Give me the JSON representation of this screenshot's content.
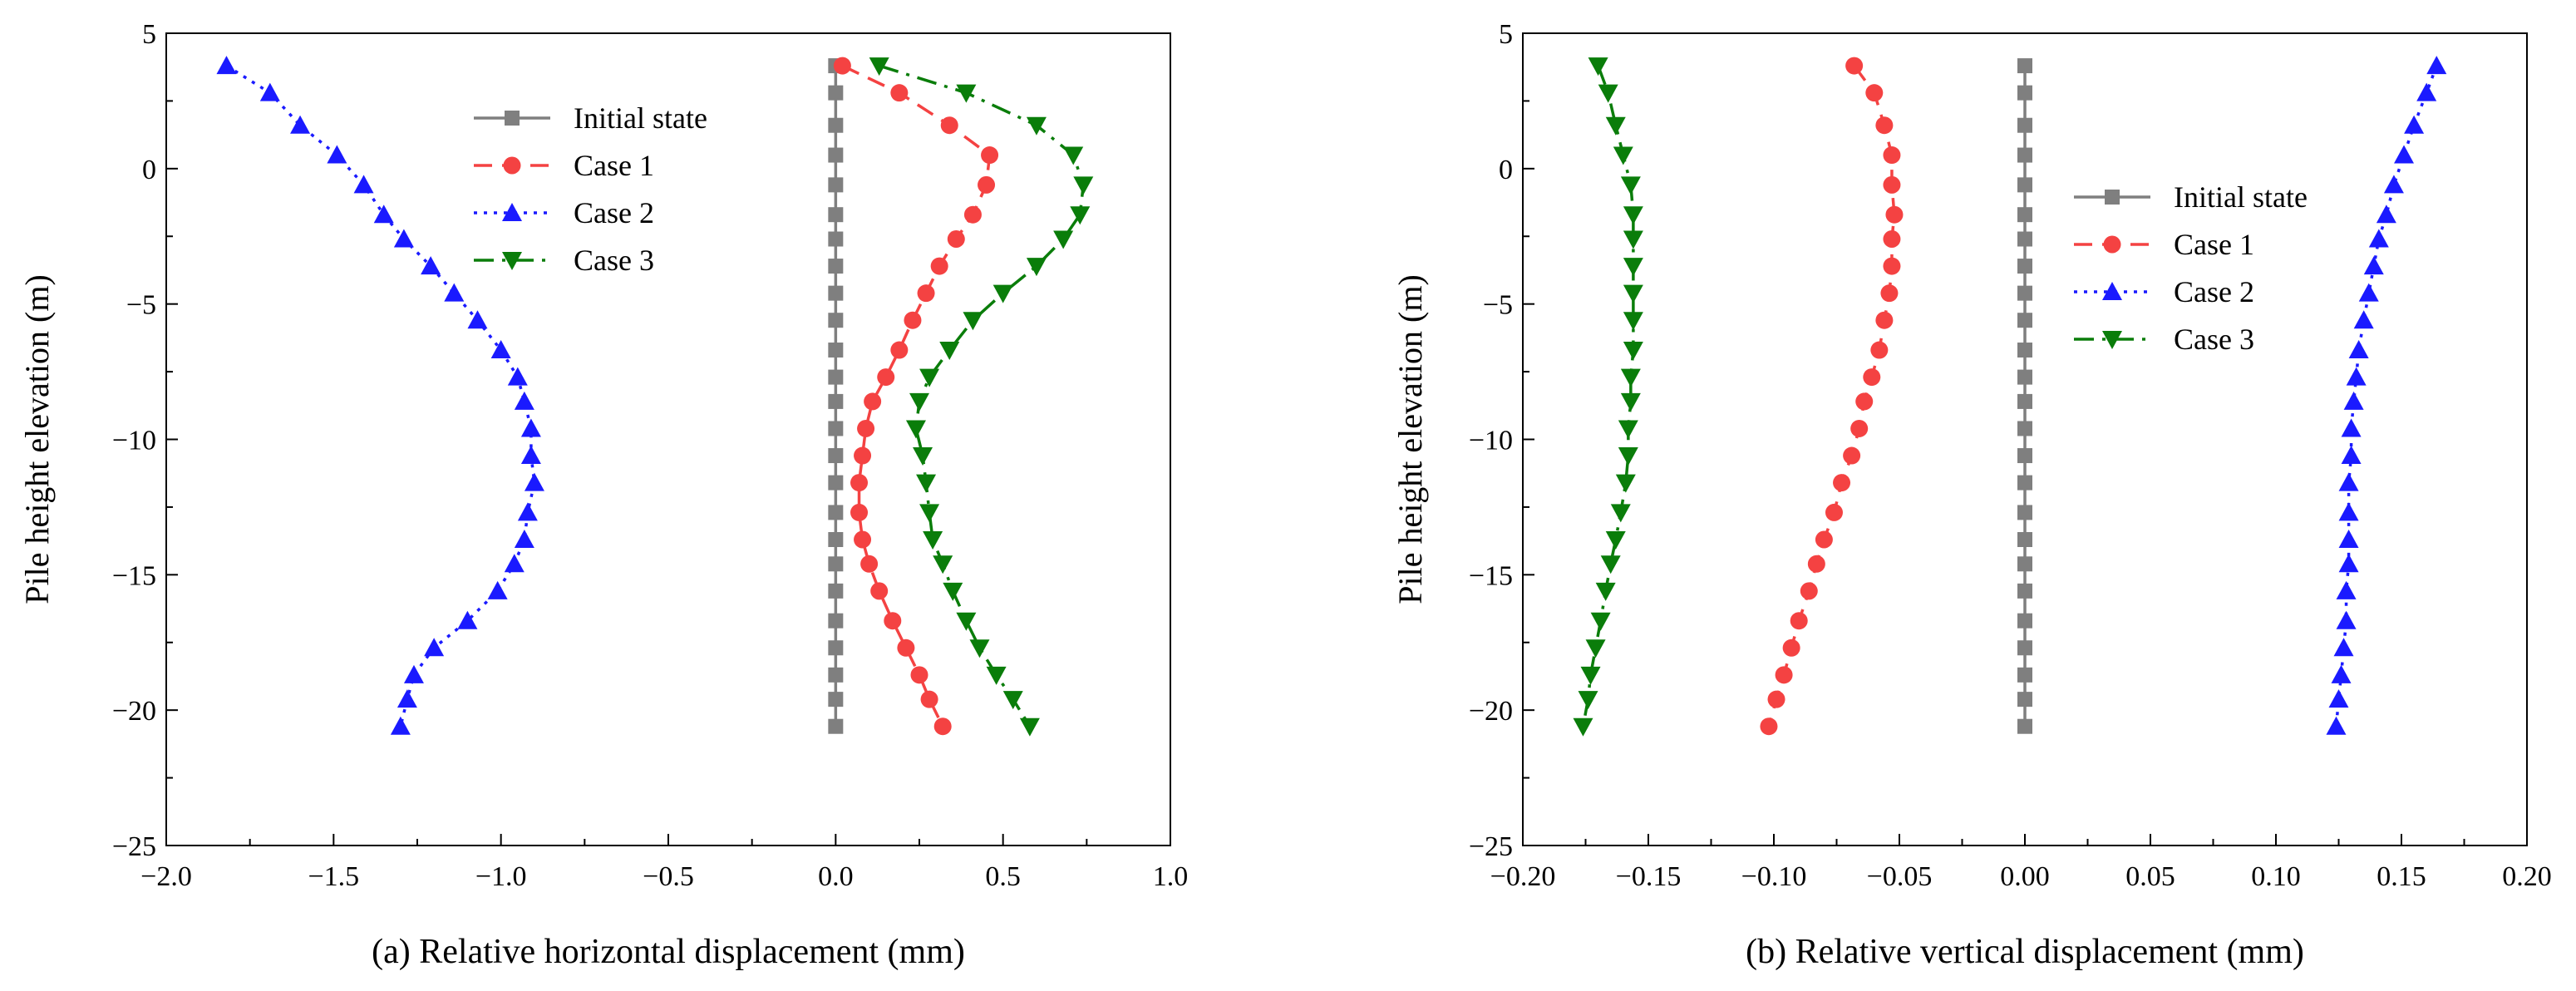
{
  "chart_data": [
    {
      "type": "line",
      "id": "a",
      "caption": "(a) Relative horizontal displacement (mm)",
      "xlabel": "",
      "ylabel": "Pile height elevation (m)",
      "xlim": [
        -2.0,
        1.0
      ],
      "ylim": [
        -25,
        5
      ],
      "xticks": [
        -2.0,
        -1.5,
        -1.0,
        -0.5,
        0.0,
        0.5,
        1.0
      ],
      "xtick_labels": [
        "−2.0",
        "−1.5",
        "−1.0",
        "−0.5",
        "0.0",
        "0.5",
        "1.0"
      ],
      "yticks": [
        5,
        0,
        -5,
        -10,
        -15,
        -20,
        -25
      ],
      "ytick_labels": [
        "5",
        "0",
        "−5",
        "−10",
        "−15",
        "−20",
        "−25"
      ],
      "legend_position": "top-left",
      "y": [
        3.8,
        2.8,
        1.6,
        0.5,
        -0.6,
        -1.7,
        -2.6,
        -3.6,
        -4.6,
        -5.6,
        -6.7,
        -7.7,
        -8.6,
        -9.6,
        -10.6,
        -11.6,
        -12.7,
        -13.7,
        -14.6,
        -15.6,
        -16.7,
        -17.7,
        -18.7,
        -19.6,
        -20.6
      ],
      "series": [
        {
          "name": "Initial state",
          "values": [
            0,
            0,
            0,
            0,
            0,
            0,
            0,
            0,
            0,
            0,
            0,
            0,
            0,
            0,
            0,
            0,
            0,
            0,
            0,
            0,
            0,
            0,
            0,
            0,
            0
          ]
        },
        {
          "name": "Case 1",
          "values": [
            0.02,
            0.19,
            0.34,
            0.46,
            0.45,
            0.41,
            0.36,
            0.31,
            0.27,
            0.23,
            0.19,
            0.15,
            0.11,
            0.09,
            0.08,
            0.07,
            0.07,
            0.08,
            0.1,
            0.13,
            0.17,
            0.21,
            0.25,
            0.28,
            0.32
          ]
        },
        {
          "name": "Case 2",
          "values": [
            -1.82,
            -1.69,
            -1.6,
            -1.49,
            -1.41,
            -1.35,
            -1.29,
            -1.21,
            -1.14,
            -1.07,
            -1.0,
            -0.95,
            -0.93,
            -0.91,
            -0.91,
            -0.9,
            -0.92,
            -0.93,
            -0.96,
            -1.01,
            -1.1,
            -1.2,
            -1.26,
            -1.28,
            -1.3
          ]
        },
        {
          "name": "Case 3",
          "values": [
            0.13,
            0.39,
            0.6,
            0.71,
            0.74,
            0.73,
            0.68,
            0.6,
            0.5,
            0.41,
            0.34,
            0.28,
            0.25,
            0.24,
            0.26,
            0.27,
            0.28,
            0.29,
            0.32,
            0.35,
            0.39,
            0.43,
            0.48,
            0.53,
            0.58
          ]
        }
      ]
    },
    {
      "type": "line",
      "id": "b",
      "caption": "(b) Relative vertical displacement (mm)",
      "xlabel": "",
      "ylabel": "Pile height elevation (m)",
      "xlim": [
        -0.2,
        0.2
      ],
      "ylim": [
        -25,
        5
      ],
      "xticks": [
        -0.2,
        -0.15,
        -0.1,
        -0.05,
        0.0,
        0.05,
        0.1,
        0.15,
        0.2
      ],
      "xtick_labels": [
        "−0.20",
        "−0.15",
        "−0.10",
        "−0.05",
        "0.00",
        "0.05",
        "0.10",
        "0.15",
        "0.20"
      ],
      "yticks": [
        5,
        0,
        -5,
        -10,
        -15,
        -20,
        -25
      ],
      "ytick_labels": [
        "5",
        "0",
        "−5",
        "−10",
        "−15",
        "−20",
        "−25"
      ],
      "legend_position": "right",
      "y": [
        3.8,
        2.8,
        1.6,
        0.5,
        -0.6,
        -1.7,
        -2.6,
        -3.6,
        -4.6,
        -5.6,
        -6.7,
        -7.7,
        -8.6,
        -9.6,
        -10.6,
        -11.6,
        -12.7,
        -13.7,
        -14.6,
        -15.6,
        -16.7,
        -17.7,
        -18.7,
        -19.6,
        -20.6
      ],
      "series": [
        {
          "name": "Initial state",
          "values": [
            0,
            0,
            0,
            0,
            0,
            0,
            0,
            0,
            0,
            0,
            0,
            0,
            0,
            0,
            0,
            0,
            0,
            0,
            0,
            0,
            0,
            0,
            0,
            0,
            0
          ]
        },
        {
          "name": "Case 1",
          "values": [
            -0.068,
            -0.06,
            -0.056,
            -0.053,
            -0.053,
            -0.052,
            -0.053,
            -0.053,
            -0.054,
            -0.056,
            -0.058,
            -0.061,
            -0.064,
            -0.066,
            -0.069,
            -0.073,
            -0.076,
            -0.08,
            -0.083,
            -0.086,
            -0.09,
            -0.093,
            -0.096,
            -0.099,
            -0.102
          ]
        },
        {
          "name": "Case 2",
          "values": [
            0.164,
            0.16,
            0.155,
            0.151,
            0.147,
            0.144,
            0.141,
            0.139,
            0.137,
            0.135,
            0.133,
            0.132,
            0.131,
            0.13,
            0.13,
            0.129,
            0.129,
            0.129,
            0.129,
            0.128,
            0.128,
            0.127,
            0.126,
            0.125,
            0.124
          ]
        },
        {
          "name": "Case 3",
          "values": [
            -0.17,
            -0.166,
            -0.163,
            -0.16,
            -0.157,
            -0.156,
            -0.156,
            -0.156,
            -0.156,
            -0.156,
            -0.156,
            -0.157,
            -0.157,
            -0.158,
            -0.158,
            -0.159,
            -0.161,
            -0.163,
            -0.165,
            -0.167,
            -0.169,
            -0.171,
            -0.173,
            -0.174,
            -0.176
          ]
        }
      ]
    }
  ],
  "series_styles": [
    {
      "color": "#7f7f7f",
      "marker": "square",
      "dash": "solid"
    },
    {
      "color": "#f44242",
      "marker": "circle",
      "dash": "dash"
    },
    {
      "color": "#1a1aff",
      "marker": "triangle-up",
      "dash": "dot"
    },
    {
      "color": "#0a7d0a",
      "marker": "triangle-down",
      "dash": "dashdot"
    }
  ]
}
